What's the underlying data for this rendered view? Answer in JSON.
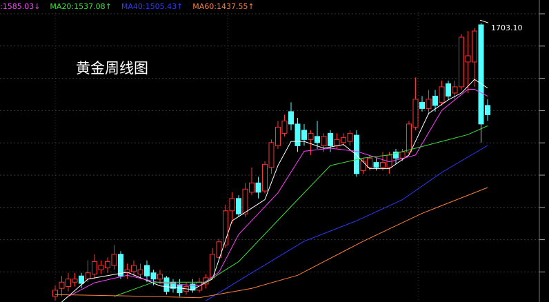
{
  "chart_data": {
    "type": "candlestick",
    "title": "黄金周线图",
    "ylim": [
      1253,
      1740
    ],
    "up_color": "#ff3232",
    "down_color": "#54ffff",
    "annotation": {
      "value": 1703.1,
      "label": "1703.10"
    },
    "ohlc": [
      [
        1262,
        1280,
        1255,
        1272
      ],
      [
        1275,
        1295,
        1262,
        1285
      ],
      [
        1278,
        1300,
        1270,
        1290
      ],
      [
        1285,
        1300,
        1278,
        1290
      ],
      [
        1295,
        1300,
        1275,
        1283
      ],
      [
        1290,
        1320,
        1285,
        1300
      ],
      [
        1298,
        1330,
        1290,
        1318
      ],
      [
        1305,
        1320,
        1298,
        1312
      ],
      [
        1308,
        1325,
        1300,
        1318
      ],
      [
        1312,
        1345,
        1305,
        1330
      ],
      [
        1330,
        1335,
        1290,
        1295
      ],
      [
        1300,
        1315,
        1290,
        1305
      ],
      [
        1302,
        1320,
        1295,
        1312
      ],
      [
        1298,
        1315,
        1290,
        1305
      ],
      [
        1312,
        1320,
        1285,
        1295
      ],
      [
        1300,
        1305,
        1280,
        1290
      ],
      [
        1290,
        1305,
        1282,
        1298
      ],
      [
        1292,
        1295,
        1265,
        1270
      ],
      [
        1285,
        1290,
        1268,
        1275
      ],
      [
        1280,
        1290,
        1262,
        1268
      ],
      [
        1270,
        1285,
        1265,
        1278
      ],
      [
        1282,
        1290,
        1268,
        1272
      ],
      [
        1272,
        1292,
        1268,
        1285
      ],
      [
        1282,
        1298,
        1275,
        1292
      ],
      [
        1292,
        1340,
        1290,
        1330
      ],
      [
        1325,
        1355,
        1320,
        1350
      ],
      [
        1345,
        1410,
        1340,
        1400
      ],
      [
        1400,
        1430,
        1380,
        1420
      ],
      [
        1420,
        1425,
        1390,
        1395
      ],
      [
        1395,
        1445,
        1390,
        1435
      ],
      [
        1430,
        1470,
        1425,
        1445
      ],
      [
        1445,
        1455,
        1420,
        1430
      ],
      [
        1432,
        1480,
        1428,
        1475
      ],
      [
        1470,
        1515,
        1460,
        1510
      ],
      [
        1505,
        1545,
        1500,
        1535
      ],
      [
        1525,
        1555,
        1520,
        1545
      ],
      [
        1560,
        1575,
        1530,
        1540
      ],
      [
        1540,
        1550,
        1495,
        1505
      ],
      [
        1530,
        1540,
        1505,
        1515
      ],
      [
        1515,
        1530,
        1490,
        1525
      ],
      [
        1520,
        1545,
        1500,
        1510
      ],
      [
        1505,
        1525,
        1495,
        1520
      ],
      [
        1525,
        1530,
        1495,
        1505
      ],
      [
        1505,
        1525,
        1500,
        1515
      ],
      [
        1510,
        1525,
        1505,
        1518
      ],
      [
        1512,
        1530,
        1505,
        1525
      ],
      [
        1522,
        1530,
        1455,
        1460
      ],
      [
        1465,
        1485,
        1460,
        1480
      ],
      [
        1470,
        1490,
        1465,
        1485
      ],
      [
        1478,
        1485,
        1465,
        1470
      ],
      [
        1470,
        1495,
        1465,
        1478
      ],
      [
        1470,
        1495,
        1460,
        1490
      ],
      [
        1495,
        1500,
        1475,
        1485
      ],
      [
        1485,
        1500,
        1480,
        1495
      ],
      [
        1495,
        1545,
        1490,
        1540
      ],
      [
        1535,
        1615,
        1530,
        1580
      ],
      [
        1575,
        1585,
        1560,
        1565
      ],
      [
        1565,
        1595,
        1555,
        1580
      ],
      [
        1585,
        1595,
        1560,
        1570
      ],
      [
        1575,
        1610,
        1570,
        1600
      ],
      [
        1605,
        1610,
        1580,
        1585
      ],
      [
        1590,
        1610,
        1580,
        1600
      ],
      [
        1600,
        1685,
        1595,
        1680
      ],
      [
        1640,
        1690,
        1590,
        1650
      ],
      [
        1640,
        1695,
        1600,
        1690
      ],
      [
        1700,
        1703.1,
        1510,
        1540
      ],
      [
        1570,
        1580,
        1545,
        1555
      ]
    ],
    "series": [
      {
        "color": "#ffffff",
        "x": [
          1,
          5,
          11,
          16,
          21,
          24,
          27,
          32,
          34,
          36,
          38,
          41,
          44,
          46,
          48,
          51,
          54,
          57,
          60,
          62,
          64,
          66
        ],
        "values": [
          1253,
          1290,
          1301,
          1279,
          1273,
          1290,
          1384,
          1418,
          1473,
          1512,
          1512,
          1501,
          1507,
          1490,
          1468,
          1468,
          1490,
          1557,
          1579,
          1590,
          1612,
          1598
        ]
      },
      {
        "name": ":1585.03↓",
        "color": "#ff40ff",
        "x": [
          2,
          6,
          11,
          16,
          22,
          25,
          28,
          34,
          38,
          42,
          46,
          51,
          55,
          59,
          63,
          64,
          66
        ],
        "values": [
          1262,
          1284,
          1296,
          1284,
          1279,
          1301,
          1362,
          1429,
          1496,
          1501,
          1496,
          1479,
          1490,
          1562,
          1596,
          1596,
          1585.03
        ]
      },
      {
        "name": "MA20:1537.08↑",
        "color": "#3ce03c",
        "x": [
          9,
          15,
          23,
          28,
          36,
          42,
          47,
          51,
          55,
          59,
          63,
          66
        ],
        "values": [
          1262,
          1285,
          1285,
          1318,
          1407,
          1473,
          1485,
          1490,
          1501,
          1512,
          1523,
          1537.08
        ]
      },
      {
        "name": "MA40:1505.43↑",
        "color": "#2a3cff",
        "x": [
          23,
          30,
          38,
          46,
          53,
          59,
          66
        ],
        "values": [
          1255,
          1300,
          1351,
          1384,
          1418,
          1462,
          1505.43
        ]
      },
      {
        "name": "MA60:1437.55↑",
        "color": "#ff7f3f",
        "x": [
          0,
          10,
          22,
          30,
          37,
          47,
          56,
          66
        ],
        "values": [
          1265,
          1263,
          1260,
          1275,
          1296,
          1351,
          1396,
          1437.55
        ]
      }
    ]
  }
}
